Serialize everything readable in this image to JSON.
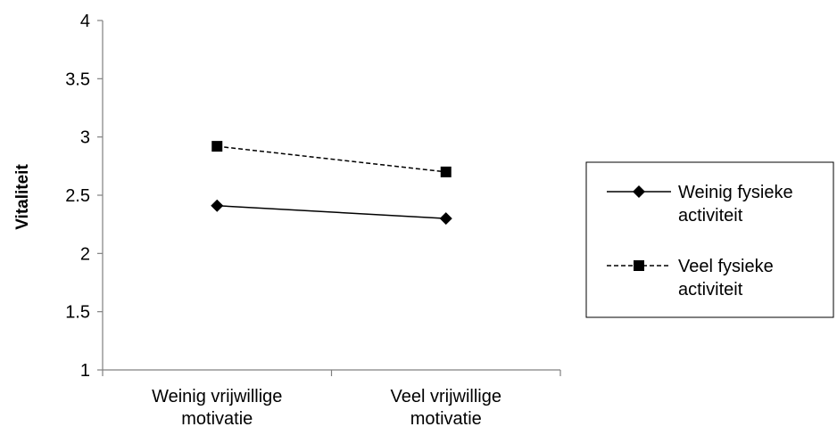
{
  "chart_data": {
    "type": "line",
    "title": "",
    "xlabel": "",
    "ylabel": "Vitaliteit",
    "ylim": [
      1,
      4
    ],
    "yticks": [
      "1",
      "1.5",
      "2",
      "2.5",
      "3",
      "3.5",
      "4"
    ],
    "categories": [
      [
        "Weinig vrijwillige",
        "motivatie"
      ],
      [
        "Veel vrijwillige",
        "motivatie"
      ]
    ],
    "grid": false,
    "legend_position": "right",
    "series": [
      {
        "name": [
          "Weinig fysieke",
          "activiteit"
        ],
        "values": [
          2.41,
          2.3
        ],
        "marker": "diamond",
        "line_style": "solid",
        "color": "#000000"
      },
      {
        "name": [
          "Veel fysieke",
          "activiteit"
        ],
        "values": [
          2.92,
          2.7
        ],
        "marker": "square",
        "line_style": "dashed",
        "color": "#000000"
      }
    ]
  }
}
